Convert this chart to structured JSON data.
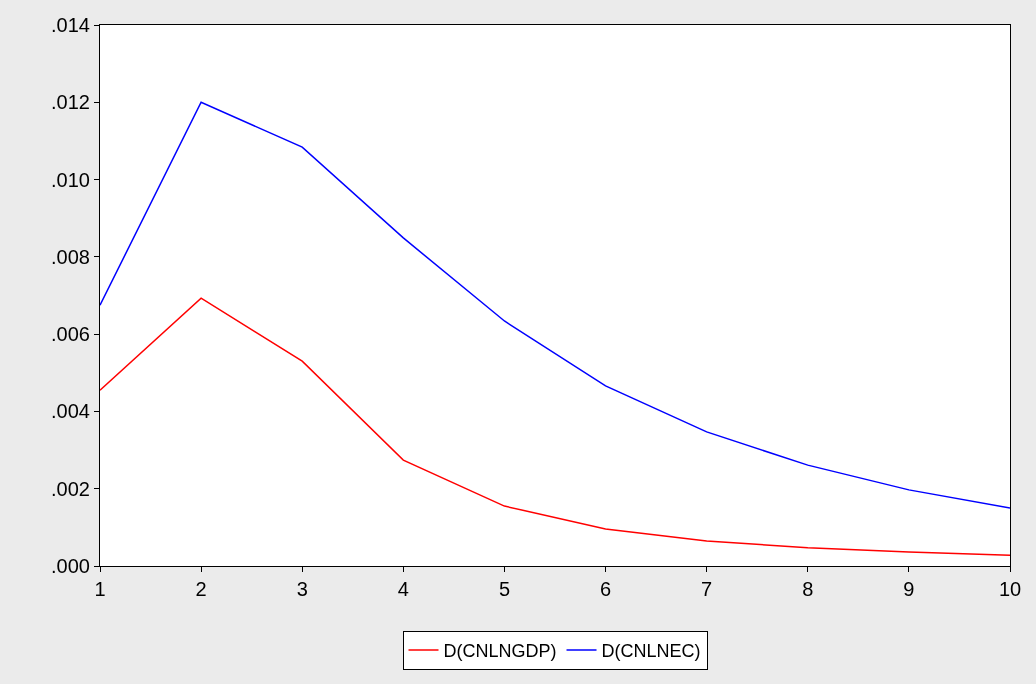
{
  "chart_data": {
    "type": "line",
    "x": [
      1,
      2,
      3,
      4,
      5,
      6,
      7,
      8,
      9,
      10
    ],
    "series": [
      {
        "name": "D(CNLNGDP)",
        "color": "#ff0000",
        "values": [
          0.00455,
          0.00693,
          0.0053,
          0.00274,
          0.00155,
          0.00096,
          0.00065,
          0.00047,
          0.00036,
          0.00028
        ]
      },
      {
        "name": "D(CNLNEC)",
        "color": "#0000ff",
        "values": [
          0.00675,
          0.012,
          0.01084,
          0.00849,
          0.00634,
          0.00466,
          0.00347,
          0.00261,
          0.00197,
          0.0015
        ]
      }
    ],
    "xlim": [
      1,
      10
    ],
    "xticks": [
      1,
      2,
      3,
      4,
      5,
      6,
      7,
      8,
      9,
      10
    ],
    "ylim": [
      0,
      0.014
    ],
    "yticks": [
      {
        "value": 0,
        "label": ".000"
      },
      {
        "value": 0.002,
        "label": ".002"
      },
      {
        "value": 0.004,
        "label": ".004"
      },
      {
        "value": 0.006,
        "label": ".006"
      },
      {
        "value": 0.008,
        "label": ".008"
      },
      {
        "value": 0.01,
        "label": ".010"
      },
      {
        "value": 0.012,
        "label": ".012"
      },
      {
        "value": 0.014,
        "label": ".014"
      }
    ],
    "legend": "bottom",
    "marker": "none",
    "line_style": "solid"
  }
}
